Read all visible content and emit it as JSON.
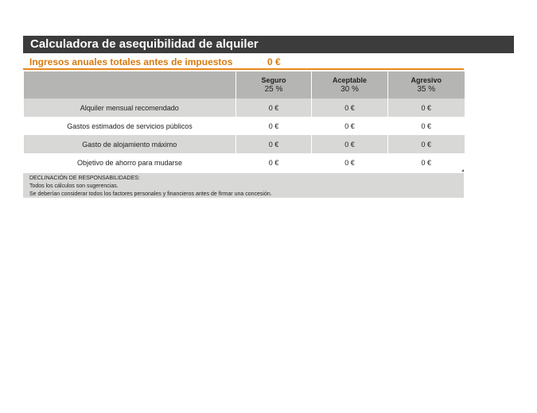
{
  "title": "Calculadora de asequibilidad de alquiler",
  "income": {
    "label": "Ingresos anuales totales antes de impuestos",
    "value": "0 €"
  },
  "columns": [
    {
      "name": "Seguro",
      "pct": "25 %"
    },
    {
      "name": "Aceptable",
      "pct": "30 %"
    },
    {
      "name": "Agresivo",
      "pct": "35 %"
    }
  ],
  "rows": [
    {
      "label": "Alquiler mensual recomendado",
      "values": [
        "0 €",
        "0 €",
        "0 €"
      ]
    },
    {
      "label": "Gastos estimados de servicios públicos",
      "values": [
        "0 €",
        "0 €",
        "0 €"
      ]
    },
    {
      "label": "Gasto de alojamiento máximo",
      "values": [
        "0 €",
        "0 €",
        "0 €"
      ]
    },
    {
      "label": "Objetivo de ahorro para mudarse",
      "values": [
        "0 €",
        "0 €",
        "0 €"
      ]
    }
  ],
  "disclaimer": {
    "heading": "DECLINACIÓN DE RESPONSABILIDADES:",
    "line1": "Todos los cálculos son sugerencias.",
    "line2": "Se deberían considerar todos los factores personales y financieros antes de firmar una concesión."
  },
  "colors": {
    "title_bg": "#3c3c3c",
    "accent": "#e88a1e",
    "header_bg": "#b5b5b3",
    "shade": "#d8d8d6"
  }
}
